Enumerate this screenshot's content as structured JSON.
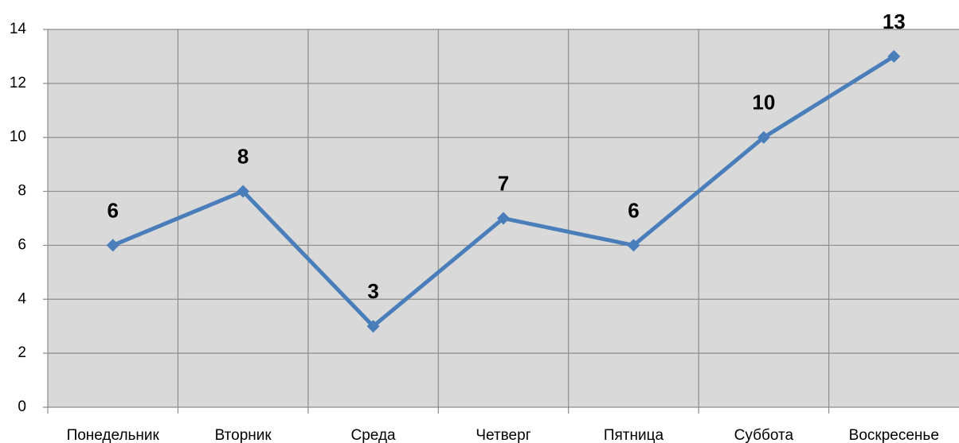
{
  "chart_data": {
    "type": "line",
    "categories": [
      "Понедельник",
      "Вторник",
      "Среда",
      "Четверг",
      "Пятница",
      "Суббота",
      "Воскресенье"
    ],
    "values": [
      6,
      8,
      3,
      7,
      6,
      10,
      13
    ],
    "color": "#4a7ebb",
    "ylim": [
      0,
      14
    ],
    "yticks": [
      0,
      2,
      4,
      6,
      8,
      10,
      12,
      14
    ],
    "grid": true,
    "data_labels": true
  }
}
